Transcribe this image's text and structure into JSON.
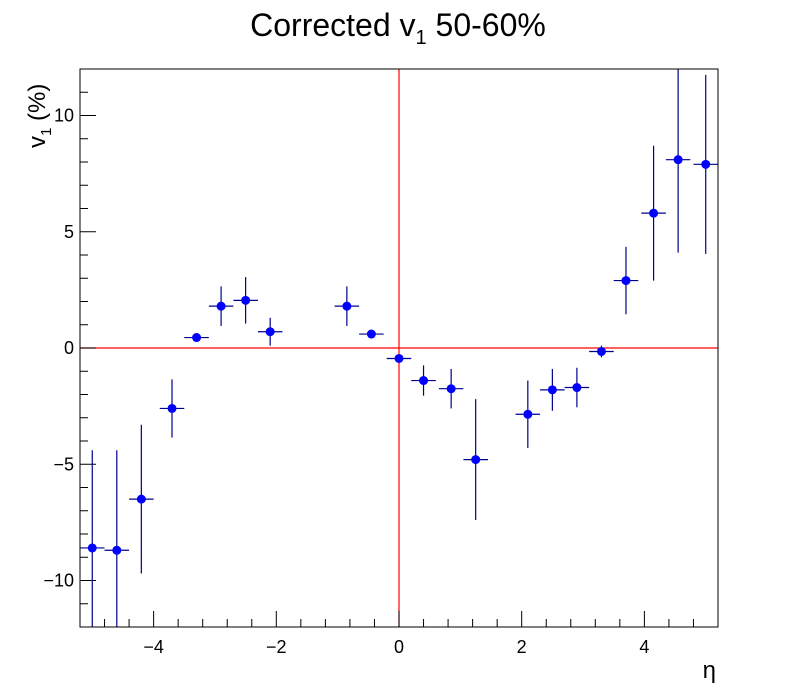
{
  "chart_data": {
    "type": "scatter",
    "title": "Corrected v",
    "title_subscript": "1",
    "title_suffix": " 50-60%",
    "xlabel": "η",
    "ylabel_main": "v",
    "ylabel_subscript": "1",
    "ylabel_suffix": " (%)",
    "xlim": [
      -5.2,
      5.2
    ],
    "ylim": [
      -12,
      12
    ],
    "xticks": [
      -4,
      -2,
      0,
      2,
      4
    ],
    "xtick_labels": [
      "−4",
      "−2",
      "0",
      "2",
      "4"
    ],
    "yticks": [
      -10,
      -5,
      0,
      5,
      10
    ],
    "ytick_labels": [
      "−10",
      "−5",
      "0",
      "5",
      "10"
    ],
    "grid": false,
    "reference_lines": {
      "x": 0,
      "y": 0,
      "color": "#ff0000"
    },
    "marker_color": "#0000ff",
    "errorbar_color": "#00008b",
    "series": [
      {
        "x": [
          -5.0,
          -4.6,
          -4.2,
          -3.7,
          -3.3,
          -2.9,
          -2.5,
          -2.1,
          -0.85,
          -0.45,
          0.0,
          0.4,
          0.85,
          1.25,
          2.1,
          2.5,
          2.9,
          3.3,
          3.7,
          4.15,
          4.55,
          5.0
        ],
        "y": [
          -8.6,
          -8.7,
          -6.5,
          -2.6,
          0.45,
          1.8,
          2.05,
          0.7,
          1.8,
          0.6,
          -0.45,
          -1.4,
          -1.75,
          -4.8,
          -2.85,
          -1.8,
          -1.7,
          -0.15,
          2.9,
          5.8,
          8.1,
          7.9
        ],
        "xerr": [
          0.2,
          0.2,
          0.2,
          0.2,
          0.2,
          0.2,
          0.2,
          0.2,
          0.2,
          0.2,
          0.2,
          0.2,
          0.2,
          0.2,
          0.2,
          0.2,
          0.2,
          0.2,
          0.2,
          0.2,
          0.2,
          0.2
        ],
        "yerr": [
          4.2,
          4.3,
          3.2,
          1.25,
          0.1,
          0.85,
          1.0,
          0.6,
          0.85,
          0.15,
          0.1,
          0.65,
          0.85,
          2.6,
          1.45,
          0.9,
          0.85,
          0.25,
          1.45,
          2.9,
          4.0,
          3.85
        ]
      }
    ]
  }
}
